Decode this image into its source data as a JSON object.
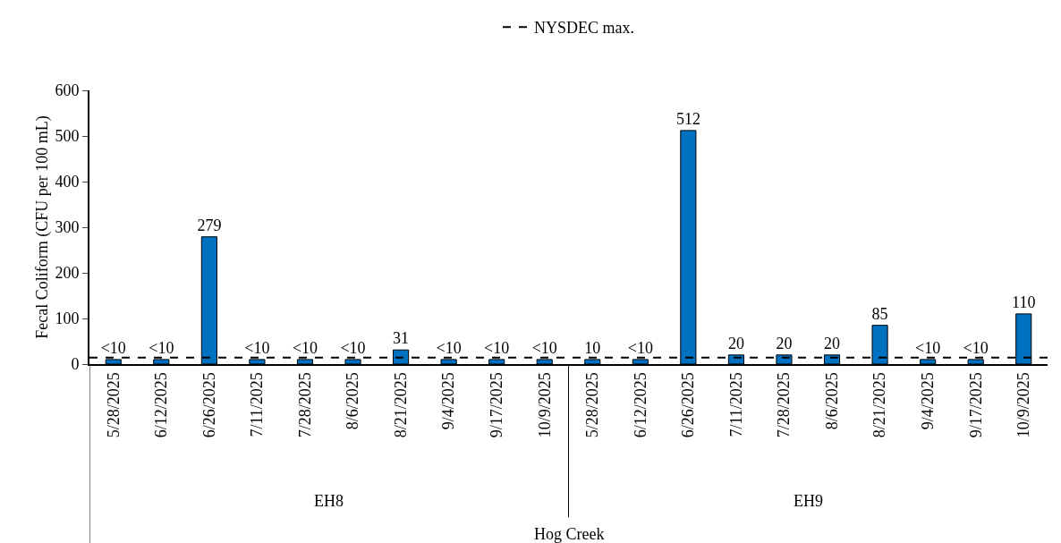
{
  "chart_data": {
    "type": "bar",
    "ylabel": "Fecal Coliform (CFU per 100 mL)",
    "categories": [
      "5/28/2025",
      "6/12/2025",
      "6/26/2025",
      "7/11/2025",
      "7/28/2025",
      "8/6/2025",
      "8/21/2025",
      "9/4/2025",
      "9/17/2025",
      "10/9/2025",
      "5/28/2025",
      "6/12/2025",
      "6/26/2025",
      "7/11/2025",
      "7/28/2025",
      "8/6/2025",
      "8/21/2025",
      "9/4/2025",
      "9/17/2025",
      "10/9/2025"
    ],
    "values": [
      10,
      10,
      279,
      10,
      10,
      10,
      31,
      10,
      10,
      10,
      10,
      10,
      512,
      20,
      20,
      20,
      85,
      10,
      10,
      110
    ],
    "value_labels": [
      "<10",
      "<10",
      "279",
      "<10",
      "<10",
      "<10",
      "31",
      "<10",
      "<10",
      "<10",
      "10",
      "<10",
      "512",
      "20",
      "20",
      "20",
      "85",
      "<10",
      "<10",
      "110"
    ],
    "color": "#0070c0",
    "annotations": [
      "EH8",
      "EH9",
      "Hog Creek"
    ],
    "ref_lines": [
      {
        "axis": "y",
        "value": 14,
        "label": "NYSDEC max.",
        "color": "#000000",
        "line_style": "dashed"
      }
    ],
    "ylim": [
      0,
      600
    ],
    "yticks": [
      0,
      100,
      200,
      300,
      400,
      500,
      600
    ],
    "grid": false,
    "legend": "top"
  }
}
